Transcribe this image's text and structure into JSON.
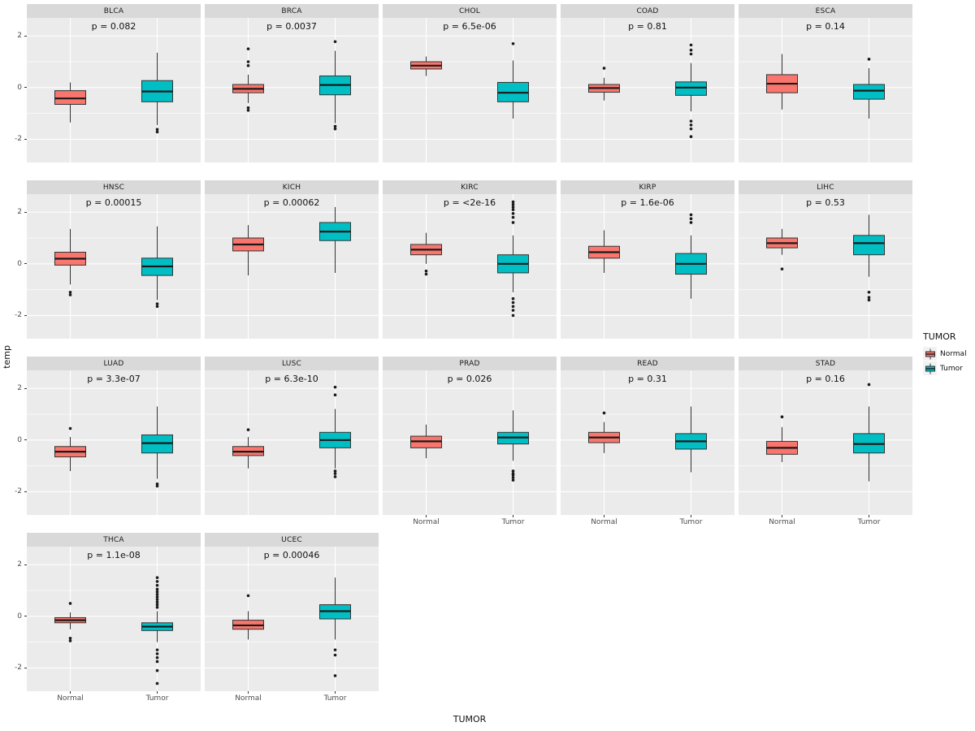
{
  "figure": {
    "background": "#FFFFFF"
  },
  "chart_data": {
    "type": "bar",
    "subtype": "faceted-boxplot",
    "title": "",
    "xlabel": "TUMOR",
    "ylabel": "temp",
    "ylim": [
      -2.9,
      2.7
    ],
    "yticks": [
      -2,
      0,
      2
    ],
    "yticks_minor": [
      -1,
      1
    ],
    "categories": [
      "Normal",
      "Tumor"
    ],
    "colors": {
      "Normal": "#F8766D",
      "Tumor": "#00BFC4",
      "panel_bg": "#EBEBEB",
      "strip_bg": "#D9D9D9",
      "grid": "#FFFFFF"
    },
    "legend": {
      "title": "TUMOR",
      "entries": [
        "Normal",
        "Tumor"
      ],
      "position": "right"
    },
    "layout": {
      "ncol": 5,
      "nrow": 4,
      "grid": "on"
    },
    "facets": [
      {
        "label": "BLCA",
        "p_label": "p = 0.082",
        "boxes": [
          {
            "group": "Normal",
            "low": -1.35,
            "q1": -0.65,
            "median": -0.42,
            "q3": -0.12,
            "high": 0.2,
            "outliers": []
          },
          {
            "group": "Tumor",
            "low": -1.45,
            "q1": -0.55,
            "median": -0.15,
            "q3": 0.27,
            "high": 1.35,
            "outliers": [
              -1.62,
              -1.72
            ]
          }
        ]
      },
      {
        "label": "BRCA",
        "p_label": "p = 0.0037",
        "boxes": [
          {
            "group": "Normal",
            "low": -0.6,
            "q1": -0.2,
            "median": -0.05,
            "q3": 0.12,
            "high": 0.5,
            "outliers": [
              1.5,
              1.0,
              0.85,
              -0.78,
              -0.88
            ]
          },
          {
            "group": "Tumor",
            "low": -1.38,
            "q1": -0.28,
            "median": 0.1,
            "q3": 0.45,
            "high": 1.42,
            "outliers": [
              1.78,
              -1.5,
              -1.6
            ]
          }
        ]
      },
      {
        "label": "CHOL",
        "p_label": "p = 6.5e-06",
        "boxes": [
          {
            "group": "Normal",
            "low": 0.45,
            "q1": 0.72,
            "median": 0.85,
            "q3": 1.0,
            "high": 1.2,
            "outliers": []
          },
          {
            "group": "Tumor",
            "low": -1.2,
            "q1": -0.55,
            "median": -0.2,
            "q3": 0.2,
            "high": 1.05,
            "outliers": [
              1.7
            ]
          }
        ]
      },
      {
        "label": "COAD",
        "p_label": "p = 0.81",
        "boxes": [
          {
            "group": "Normal",
            "low": -0.5,
            "q1": -0.18,
            "median": -0.02,
            "q3": 0.12,
            "high": 0.38,
            "outliers": [
              0.75
            ]
          },
          {
            "group": "Tumor",
            "low": -0.92,
            "q1": -0.3,
            "median": 0.0,
            "q3": 0.22,
            "high": 0.95,
            "outliers": [
              1.65,
              1.45,
              1.3,
              -1.3,
              -1.45,
              -1.6,
              -1.9
            ]
          }
        ]
      },
      {
        "label": "ESCA",
        "p_label": "p = 0.14",
        "boxes": [
          {
            "group": "Normal",
            "low": -0.85,
            "q1": -0.2,
            "median": 0.15,
            "q3": 0.5,
            "high": 1.3,
            "outliers": []
          },
          {
            "group": "Tumor",
            "low": -1.2,
            "q1": -0.45,
            "median": -0.12,
            "q3": 0.12,
            "high": 0.75,
            "outliers": [
              1.1
            ]
          }
        ]
      },
      {
        "label": "HNSC",
        "p_label": "p = 0.00015",
        "boxes": [
          {
            "group": "Normal",
            "low": -0.8,
            "q1": -0.05,
            "median": 0.2,
            "q3": 0.45,
            "high": 1.35,
            "outliers": [
              -1.1,
              -1.2
            ]
          },
          {
            "group": "Tumor",
            "low": -1.4,
            "q1": -0.45,
            "median": -0.1,
            "q3": 0.22,
            "high": 1.45,
            "outliers": [
              -1.55,
              -1.65
            ]
          }
        ]
      },
      {
        "label": "KICH",
        "p_label": "p = 0.00062",
        "boxes": [
          {
            "group": "Normal",
            "low": -0.45,
            "q1": 0.5,
            "median": 0.75,
            "q3": 1.0,
            "high": 1.5,
            "outliers": []
          },
          {
            "group": "Tumor",
            "low": -0.35,
            "q1": 0.9,
            "median": 1.25,
            "q3": 1.6,
            "high": 2.2,
            "outliers": []
          }
        ]
      },
      {
        "label": "KIRC",
        "p_label": "p = <2e-16",
        "boxes": [
          {
            "group": "Normal",
            "low": 0.0,
            "q1": 0.35,
            "median": 0.55,
            "q3": 0.75,
            "high": 1.2,
            "outliers": [
              -0.28,
              -0.4
            ]
          },
          {
            "group": "Tumor",
            "low": -1.1,
            "q1": -0.35,
            "median": 0.0,
            "q3": 0.35,
            "high": 1.1,
            "outliers": [
              2.4,
              2.3,
              2.2,
              2.1,
              1.95,
              1.8,
              1.6,
              -1.35,
              -1.5,
              -1.65,
              -1.8,
              -2.0
            ]
          }
        ]
      },
      {
        "label": "KIRP",
        "p_label": "p = 1.6e-06",
        "boxes": [
          {
            "group": "Normal",
            "low": -0.35,
            "q1": 0.22,
            "median": 0.45,
            "q3": 0.68,
            "high": 1.3,
            "outliers": []
          },
          {
            "group": "Tumor",
            "low": -1.35,
            "q1": -0.4,
            "median": 0.0,
            "q3": 0.4,
            "high": 1.1,
            "outliers": [
              1.9,
              1.75,
              1.6
            ]
          }
        ]
      },
      {
        "label": "LIHC",
        "p_label": "p = 0.53",
        "boxes": [
          {
            "group": "Normal",
            "low": 0.35,
            "q1": 0.62,
            "median": 0.8,
            "q3": 1.0,
            "high": 1.35,
            "outliers": [
              -0.2
            ]
          },
          {
            "group": "Tumor",
            "low": -0.5,
            "q1": 0.35,
            "median": 0.8,
            "q3": 1.1,
            "high": 1.9,
            "outliers": [
              -1.1,
              -1.3,
              -1.4
            ]
          }
        ]
      },
      {
        "label": "LUAD",
        "p_label": "p = 3.3e-07",
        "boxes": [
          {
            "group": "Normal",
            "low": -1.2,
            "q1": -0.65,
            "median": -0.45,
            "q3": -0.25,
            "high": 0.12,
            "outliers": [
              0.45
            ]
          },
          {
            "group": "Tumor",
            "low": -1.5,
            "q1": -0.5,
            "median": -0.12,
            "q3": 0.2,
            "high": 1.3,
            "outliers": [
              -1.7,
              -1.78
            ]
          }
        ]
      },
      {
        "label": "LUSC",
        "p_label": "p = 6.3e-10",
        "boxes": [
          {
            "group": "Normal",
            "low": -1.1,
            "q1": -0.6,
            "median": -0.45,
            "q3": -0.25,
            "high": 0.12,
            "outliers": [
              0.4
            ]
          },
          {
            "group": "Tumor",
            "low": -1.1,
            "q1": -0.3,
            "median": 0.0,
            "q3": 0.3,
            "high": 1.2,
            "outliers": [
              2.05,
              1.75,
              -1.2,
              -1.3,
              -1.42
            ]
          }
        ]
      },
      {
        "label": "PRAD",
        "p_label": "p = 0.026",
        "boxes": [
          {
            "group": "Normal",
            "low": -0.7,
            "q1": -0.3,
            "median": -0.05,
            "q3": 0.15,
            "high": 0.6,
            "outliers": []
          },
          {
            "group": "Tumor",
            "low": -0.8,
            "q1": -0.15,
            "median": 0.1,
            "q3": 0.3,
            "high": 1.15,
            "outliers": [
              -1.2,
              -1.3,
              -1.35,
              -1.45,
              -1.55
            ]
          }
        ]
      },
      {
        "label": "READ",
        "p_label": "p = 0.31",
        "boxes": [
          {
            "group": "Normal",
            "low": -0.5,
            "q1": -0.1,
            "median": 0.1,
            "q3": 0.3,
            "high": 0.7,
            "outliers": [
              1.05
            ]
          },
          {
            "group": "Tumor",
            "low": -1.25,
            "q1": -0.35,
            "median": -0.05,
            "q3": 0.25,
            "high": 1.3,
            "outliers": []
          }
        ]
      },
      {
        "label": "STAD",
        "p_label": "p = 0.16",
        "boxes": [
          {
            "group": "Normal",
            "low": -0.85,
            "q1": -0.55,
            "median": -0.3,
            "q3": -0.05,
            "high": 0.5,
            "outliers": [
              0.9
            ]
          },
          {
            "group": "Tumor",
            "low": -1.6,
            "q1": -0.5,
            "median": -0.15,
            "q3": 0.25,
            "high": 1.3,
            "outliers": [
              2.15
            ]
          }
        ]
      },
      {
        "label": "THCA",
        "p_label": "p = 1.1e-08",
        "boxes": [
          {
            "group": "Normal",
            "low": -0.5,
            "q1": -0.25,
            "median": -0.15,
            "q3": -0.05,
            "high": 0.15,
            "outliers": [
              0.5,
              -0.85,
              -0.95
            ]
          },
          {
            "group": "Tumor",
            "low": -1.0,
            "q1": -0.55,
            "median": -0.4,
            "q3": -0.25,
            "high": 0.2,
            "outliers": [
              1.5,
              1.35,
              1.2,
              1.05,
              0.95,
              0.85,
              0.75,
              0.65,
              0.55,
              0.45,
              0.35,
              -1.3,
              -1.45,
              -1.6,
              -1.75,
              -2.1,
              -2.6
            ]
          }
        ]
      },
      {
        "label": "UCEC",
        "p_label": "p = 0.00046",
        "boxes": [
          {
            "group": "Normal",
            "low": -0.9,
            "q1": -0.5,
            "median": -0.35,
            "q3": -0.15,
            "high": 0.2,
            "outliers": [
              0.8
            ]
          },
          {
            "group": "Tumor",
            "low": -0.9,
            "q1": -0.1,
            "median": 0.2,
            "q3": 0.45,
            "high": 1.5,
            "outliers": [
              -1.3,
              -1.5,
              -2.3
            ]
          }
        ]
      }
    ]
  }
}
